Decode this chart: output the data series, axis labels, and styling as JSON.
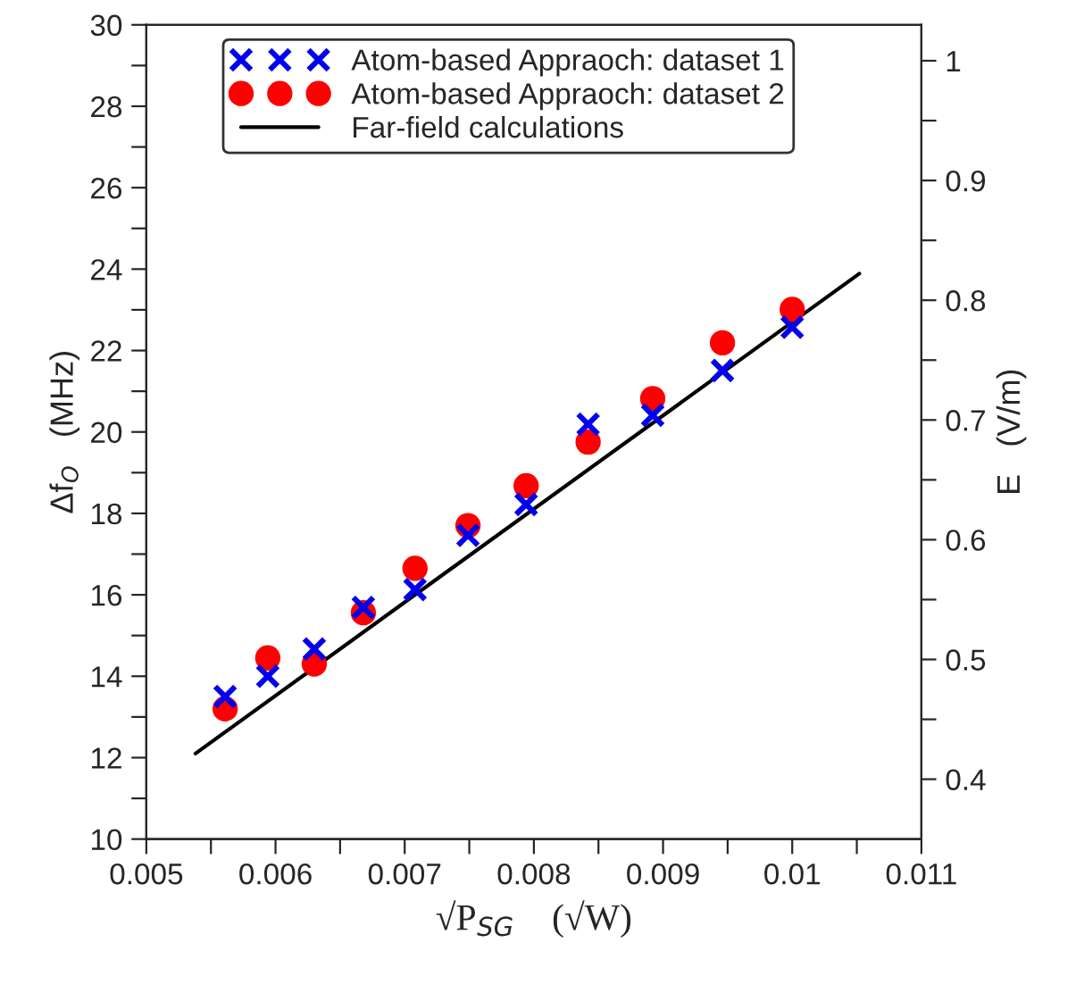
{
  "chart_data": {
    "type": "scatter",
    "xlabel": "√P$_{SG}$    (√W)",
    "ylabel": "Δf$_{O}$   (MHz)",
    "y2label": "E   (V/m)",
    "xlim": [
      0.005,
      0.011
    ],
    "ylim": [
      10,
      30
    ],
    "y2lim": [
      0.35,
      1.03
    ],
    "xticks": [
      0.005,
      {
        "value": 0.0055,
        "label": null
      },
      0.006,
      {
        "value": 0.0065,
        "label": null
      },
      0.007,
      {
        "value": 0.0075,
        "label": null
      },
      0.008,
      {
        "value": 0.0085,
        "label": null
      },
      0.009,
      {
        "value": 0.0095,
        "label": null
      },
      0.01,
      {
        "value": 0.0105,
        "label": null
      },
      0.011
    ],
    "yticks": [
      10,
      {
        "value": 11,
        "label": null
      },
      12,
      {
        "value": 13,
        "label": null
      },
      14,
      {
        "value": 15,
        "label": null
      },
      16,
      {
        "value": 17,
        "label": null
      },
      18,
      {
        "value": 19,
        "label": null
      },
      20,
      {
        "value": 21,
        "label": null
      },
      22,
      {
        "value": 23,
        "label": null
      },
      24,
      {
        "value": 25,
        "label": null
      },
      26,
      {
        "value": 27,
        "label": null
      },
      28,
      {
        "value": 29,
        "label": null
      },
      30
    ],
    "y2ticks": [
      0.4,
      {
        "value": 0.45,
        "label": null
      },
      0.5,
      {
        "value": 0.55,
        "label": null
      },
      0.6,
      {
        "value": 0.65,
        "label": null
      },
      0.7,
      {
        "value": 0.75,
        "label": null
      },
      0.8,
      {
        "value": 0.85,
        "label": null
      },
      0.9,
      {
        "value": 0.95,
        "label": null
      },
      1
    ],
    "grid": false,
    "legend": "top left",
    "series": [
      {
        "name": "Atom-based Appraoch: dataset 1",
        "marker": "cross",
        "color": "#0000ee",
        "x": [
          0.00561,
          0.00594,
          0.0063,
          0.00668,
          0.00708,
          0.00749,
          0.00794,
          0.00842,
          0.00892,
          0.00946,
          0.01
        ],
        "values": [
          13.5,
          14.0,
          14.67,
          15.69,
          16.13,
          17.46,
          18.22,
          20.19,
          20.41,
          21.51,
          22.57
        ]
      },
      {
        "name": "Atom-based Appraoch: dataset 2",
        "marker": "circle",
        "color": "#ff0000",
        "x": [
          0.00561,
          0.00594,
          0.0063,
          0.00668,
          0.00708,
          0.00749,
          0.00794,
          0.00842,
          0.00892,
          0.00946,
          0.01
        ],
        "values": [
          13.2,
          14.45,
          14.3,
          15.56,
          16.65,
          17.7,
          18.68,
          19.75,
          20.82,
          22.19,
          23.01
        ]
      },
      {
        "name": "Far-field calculations",
        "type": "line",
        "color": "#000000",
        "line_style": "solid",
        "x": [
          0.00538,
          0.01052
        ],
        "values": [
          12.1,
          23.89
        ]
      }
    ]
  }
}
